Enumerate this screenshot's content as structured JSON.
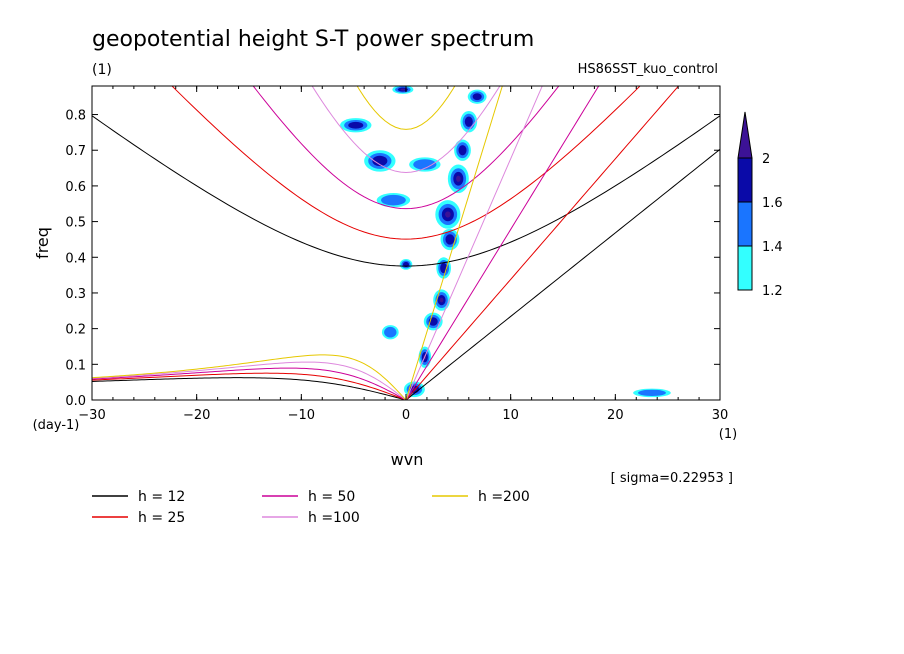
{
  "chart_data": {
    "type": "heatmap",
    "title": "geopotential height S-T power spectrum",
    "units_left": "(1)",
    "experiment": "HS86SST_kuo_control",
    "xlabel": "wvn",
    "xunit": "(1)",
    "ylabel": "freq",
    "yunit": "(day-1)",
    "xlim": [
      -30,
      30
    ],
    "ylim": [
      0,
      0.88
    ],
    "xticks": [
      -30,
      -20,
      -10,
      0,
      10,
      20,
      30
    ],
    "yticks": [
      0.0,
      0.1,
      0.2,
      0.3,
      0.4,
      0.5,
      0.6,
      0.7,
      0.8
    ],
    "ytick_labels": [
      "0.0",
      "0.1",
      "0.2",
      "0.3",
      "0.4",
      "0.5",
      "0.6",
      "0.7",
      "0.8"
    ],
    "sigma_note": "[ sigma=0.22953 ]",
    "colorbar": {
      "levels": [
        1.2,
        1.4,
        1.6,
        2
      ],
      "labels": [
        "1.2",
        "1.4",
        "1.6",
        "2"
      ],
      "colors": [
        "#33ffff",
        "#1a75ff",
        "#0a0aa8",
        "#3c1296"
      ]
    },
    "dispersion_curves": [
      {
        "label": "h = 12",
        "h": 12,
        "color": "#000000"
      },
      {
        "label": "h = 25",
        "h": 25,
        "color": "#e60000"
      },
      {
        "label": "h = 50",
        "h": 50,
        "color": "#cc0099"
      },
      {
        "label": "h =100",
        "h": 100,
        "color": "#dd88dd"
      },
      {
        "label": "h =200",
        "h": 200,
        "color": "#e6c800"
      }
    ],
    "blobs": [
      {
        "x": 0.8,
        "y": 0.03,
        "rx": 1.0,
        "ry": 0.022,
        "level": 3
      },
      {
        "x": 1.8,
        "y": 0.12,
        "rx": 0.6,
        "ry": 0.03,
        "level": 3
      },
      {
        "x": 2.6,
        "y": 0.22,
        "rx": 0.9,
        "ry": 0.025,
        "level": 2
      },
      {
        "x": 3.4,
        "y": 0.28,
        "rx": 0.8,
        "ry": 0.03,
        "level": 3
      },
      {
        "x": 3.6,
        "y": 0.37,
        "rx": 0.7,
        "ry": 0.03,
        "level": 2
      },
      {
        "x": 4.2,
        "y": 0.45,
        "rx": 0.9,
        "ry": 0.03,
        "level": 2
      },
      {
        "x": 4.0,
        "y": 0.52,
        "rx": 1.2,
        "ry": 0.04,
        "level": 3
      },
      {
        "x": 5.0,
        "y": 0.62,
        "rx": 1.0,
        "ry": 0.04,
        "level": 3
      },
      {
        "x": 5.4,
        "y": 0.7,
        "rx": 0.8,
        "ry": 0.03,
        "level": 2
      },
      {
        "x": 6.0,
        "y": 0.78,
        "rx": 0.8,
        "ry": 0.03,
        "level": 2
      },
      {
        "x": 6.8,
        "y": 0.85,
        "rx": 0.9,
        "ry": 0.02,
        "level": 2
      },
      {
        "x": -0.3,
        "y": 0.87,
        "rx": 1.0,
        "ry": 0.012,
        "level": 3
      },
      {
        "x": -2.5,
        "y": 0.67,
        "rx": 1.5,
        "ry": 0.03,
        "level": 2
      },
      {
        "x": 1.8,
        "y": 0.66,
        "rx": 1.5,
        "ry": 0.02,
        "level": 1
      },
      {
        "x": -4.8,
        "y": 0.77,
        "rx": 1.5,
        "ry": 0.02,
        "level": 2
      },
      {
        "x": -1.2,
        "y": 0.56,
        "rx": 1.6,
        "ry": 0.02,
        "level": 1
      },
      {
        "x": 0.0,
        "y": 0.38,
        "rx": 0.6,
        "ry": 0.015,
        "level": 2
      },
      {
        "x": -1.5,
        "y": 0.19,
        "rx": 0.8,
        "ry": 0.02,
        "level": 1
      },
      {
        "x": 23.5,
        "y": 0.02,
        "rx": 1.8,
        "ry": 0.012,
        "level": 1
      }
    ]
  }
}
